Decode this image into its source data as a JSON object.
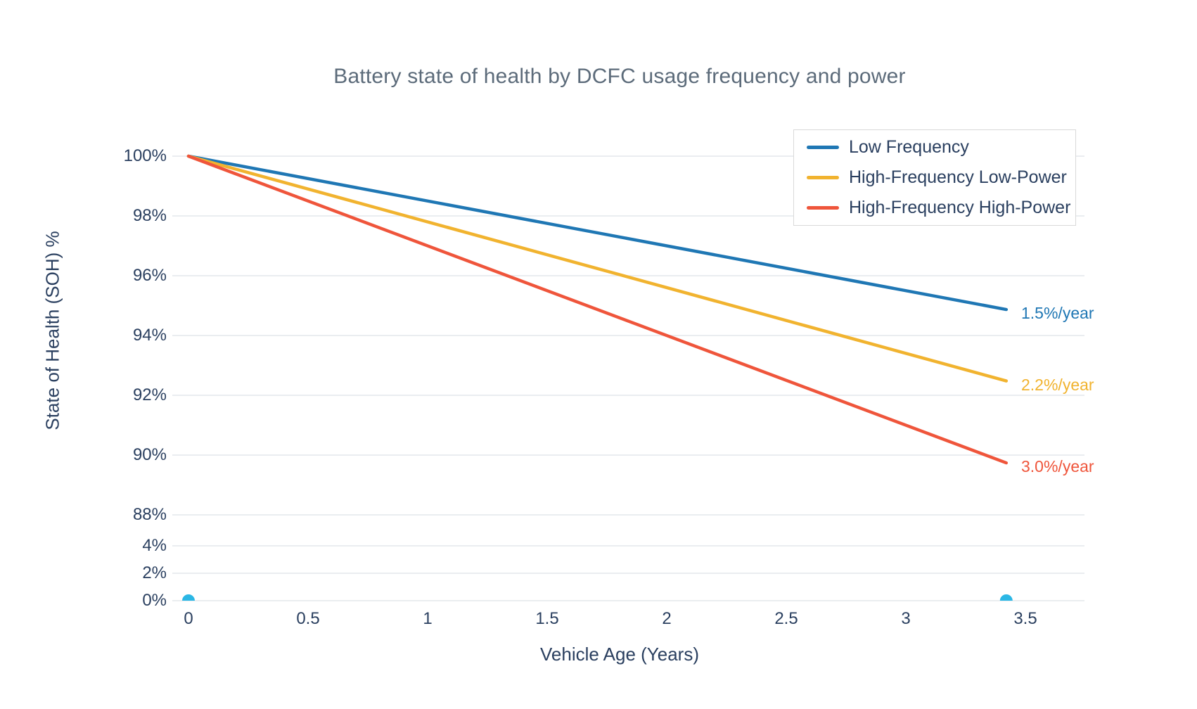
{
  "chart_data": {
    "type": "line",
    "title": "Battery state of health by DCFC usage frequency and power",
    "xlabel": "Vehicle Age (Years)",
    "ylabel": "State of Health (SOH) %",
    "x_ticks": [
      0,
      0.5,
      1,
      1.5,
      2,
      2.5,
      3,
      3.5
    ],
    "y_ticks_upper_pct": [
      100,
      98,
      96,
      94,
      92,
      90,
      88
    ],
    "y_ticks_lower_pct": [
      4,
      2,
      0
    ],
    "tick_suffix": "%",
    "axis_note": "y-axis is broken/compressed between 4% and 88%",
    "xlim": [
      0,
      3.5
    ],
    "grid": true,
    "legend_position": "top-right",
    "series": [
      {
        "name": "Low Frequency",
        "color": "#1F77B4",
        "degradation_rate_pct_per_year": 1.5,
        "annotation": "1.5%/year",
        "x": [
          0,
          3.42
        ],
        "y": [
          100,
          94.87
        ]
      },
      {
        "name": "High-Frequency Low-Power",
        "color": "#F1B32F",
        "degradation_rate_pct_per_year": 2.2,
        "annotation": "2.2%/year",
        "x": [
          0,
          3.42
        ],
        "y": [
          100,
          92.48
        ]
      },
      {
        "name": "High-Frequency High-Power",
        "color": "#EF553B",
        "degradation_rate_pct_per_year": 3.0,
        "annotation": "3.0%/year",
        "x": [
          0,
          3.42
        ],
        "y": [
          100,
          89.74
        ]
      }
    ],
    "scatter_markers": {
      "name": "baseline markers at 0%",
      "color": "#2BB7E5",
      "points": [
        [
          0,
          0
        ],
        [
          3.42,
          0
        ]
      ]
    },
    "legend_entries": [
      "Low Frequency",
      "High-Frequency Low-Power",
      "High-Frequency High-Power"
    ]
  },
  "colors": {
    "title_text": "#5C6B7A",
    "axis_text": "#2A3F5F",
    "grid_line": "#E4E7EB",
    "legend_border": "#D9D9D9",
    "background": "#FFFFFF"
  }
}
